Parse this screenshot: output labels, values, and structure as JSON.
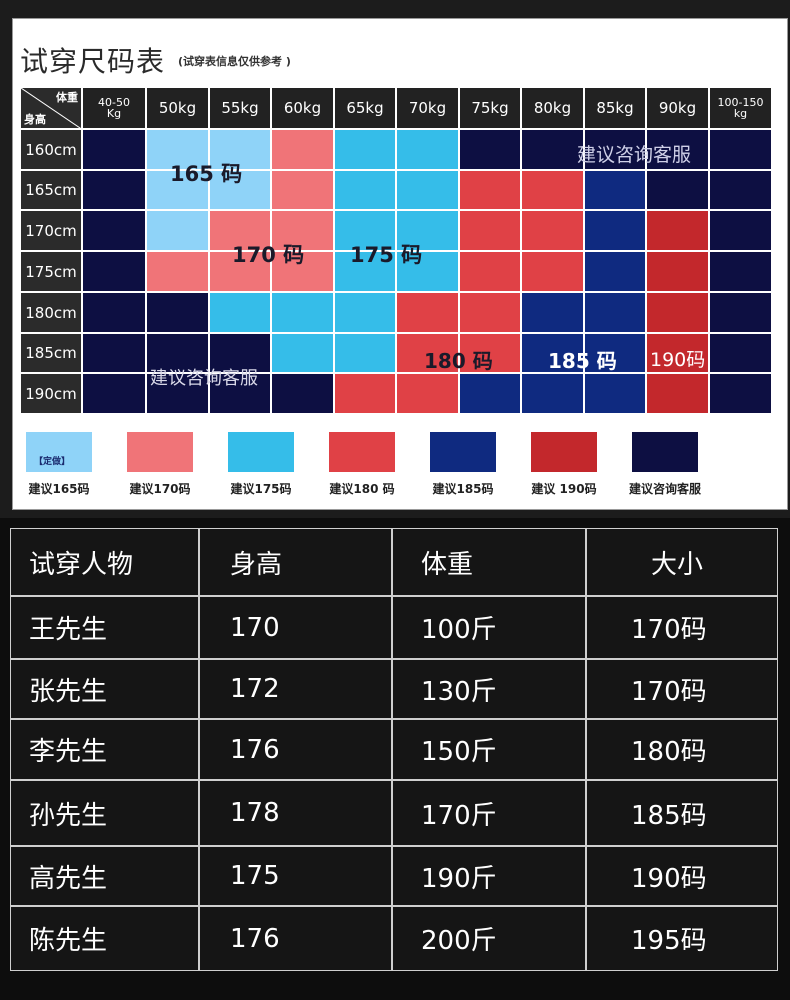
{
  "title": "试穿尺码表",
  "subtitle": "(试穿表信息仅供参考 )",
  "corner": {
    "weight": "体重",
    "height": "身高"
  },
  "weights": [
    [
      "40-50",
      "Kg"
    ],
    [
      "50kg"
    ],
    [
      "55kg"
    ],
    [
      "60kg"
    ],
    [
      "65kg"
    ],
    [
      "70kg"
    ],
    [
      "75kg"
    ],
    [
      "80kg"
    ],
    [
      "85kg"
    ],
    [
      "90kg"
    ],
    [
      "100-150",
      "kg"
    ]
  ],
  "heights": [
    "160cm",
    "165cm",
    "170cm",
    "175cm",
    "180cm",
    "185cm",
    "190cm"
  ],
  "colors": {
    "s165": "#8fd3f8",
    "s170": "#f07478",
    "s175": "#35bde9",
    "s180": "#e04146",
    "s185": "#0f2a80",
    "s190": "#c3282c",
    "service": "#0d0f42"
  },
  "grid": [
    [
      "service",
      "s165",
      "s165",
      "s170",
      "s175",
      "s175",
      "service",
      "service",
      "service",
      "service",
      "service"
    ],
    [
      "service",
      "s165",
      "s165",
      "s170",
      "s175",
      "s175",
      "s180",
      "s180",
      "s185",
      "service",
      "service"
    ],
    [
      "service",
      "s165",
      "s170",
      "s170",
      "s175",
      "s175",
      "s180",
      "s180",
      "s185",
      "s190",
      "service"
    ],
    [
      "service",
      "s170",
      "s170",
      "s170",
      "s175",
      "s175",
      "s180",
      "s180",
      "s185",
      "s190",
      "service"
    ],
    [
      "service",
      "service",
      "s175",
      "s175",
      "s175",
      "s180",
      "s180",
      "s185",
      "s185",
      "s190",
      "service"
    ],
    [
      "service",
      "service",
      "service",
      "s175",
      "s175",
      "s180",
      "s180",
      "s185",
      "s185",
      "s190",
      "service"
    ],
    [
      "service",
      "service",
      "service",
      "service",
      "s180",
      "s180",
      "s185",
      "s185",
      "s185",
      "s190",
      "service"
    ]
  ],
  "zone_labels": {
    "l165": "165 码",
    "l170": "170 码",
    "l175": "175 码",
    "l180": "180 码",
    "l185": "185 码",
    "l190": "190码",
    "svc_top": "建议咨询客服",
    "svc_bottom": "建议咨询客服"
  },
  "legend": [
    {
      "color": "#8fd3f8",
      "text": "建议165码",
      "tag": "【定做】"
    },
    {
      "color": "#f07478",
      "text": "建议170码"
    },
    {
      "color": "#35bde9",
      "text": "建议175码"
    },
    {
      "color": "#e04146",
      "text": "建议180 码"
    },
    {
      "color": "#0f2a80",
      "text": "建议185码"
    },
    {
      "color": "#c3282c",
      "text": "建议 190码"
    },
    {
      "color": "#0d0f42",
      "text": "建议咨询客服"
    }
  ],
  "table": {
    "headers": [
      "试穿人物",
      "身高",
      "体重",
      "大小"
    ],
    "rows": [
      [
        "王先生",
        "170",
        "100斤",
        "170码"
      ],
      [
        "张先生",
        "172",
        "130斤",
        "170码"
      ],
      [
        "李先生",
        "176",
        "150斤",
        "180码"
      ],
      [
        "孙先生",
        "178",
        "170斤",
        "185码"
      ],
      [
        "高先生",
        "175",
        "190斤",
        "190码"
      ],
      [
        "陈先生",
        "176",
        "200斤",
        "195码"
      ]
    ]
  }
}
